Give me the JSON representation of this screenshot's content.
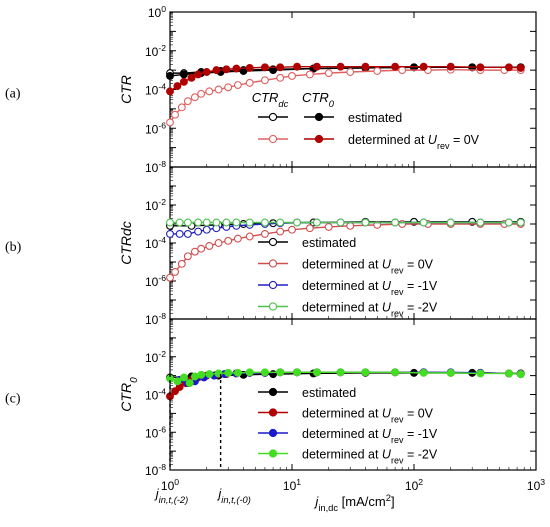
{
  "figure": {
    "x_axis": {
      "label_main": "j",
      "label_sub": "in,dc",
      "label_unit_pre": " [mA/cm",
      "label_unit_sup": "2",
      "label_unit_post": "]",
      "scale": "log",
      "range": [
        1,
        1000
      ],
      "tick_base": "10",
      "tick_exponents": [
        "0",
        "1",
        "2",
        "3"
      ],
      "threshold_lines": [
        {
          "main": "j",
          "sub": "in,t,(-2)",
          "x": 1.0
        },
        {
          "main": "j",
          "sub": "in,t,(-0)",
          "x": 2.6
        }
      ]
    },
    "y_tick_base": "10",
    "y_tick_exponents": [
      "0",
      "-2",
      "-4",
      "-6",
      "-8"
    ]
  },
  "chart_data": [
    {
      "panel_label": "(a)",
      "type": "scatter",
      "y_label_main": "CTR",
      "y_label_sub": "",
      "scale": "log",
      "ylim": [
        1e-08,
        1
      ],
      "legend": {
        "placement": "center",
        "col_headers": [
          {
            "main": "CTR",
            "sub": "dc"
          },
          {
            "main": "CTR",
            "sub": "0"
          }
        ],
        "rows": [
          {
            "pre": "estimated",
            "sub": "",
            "post": "",
            "colors": [
              "#000000",
              "#000000"
            ]
          },
          {
            "pre": "determined at U",
            "sub": "rev",
            "post": " = 0V",
            "colors": [
              "#e06060",
              "#b00000"
            ]
          }
        ]
      },
      "series": [
        {
          "name": "CTRdc estimated",
          "color": "#000000",
          "fill": "none",
          "x": [
            1.0,
            1.3,
            1.8,
            2.6,
            4,
            7,
            15,
            40,
            100,
            300,
            750
          ],
          "y": [
            0.0007,
            0.0007,
            0.0008,
            0.0009,
            0.001,
            0.0011,
            0.0012,
            0.0013,
            0.0014,
            0.0014,
            0.0014
          ]
        },
        {
          "name": "CTR0 estimated",
          "color": "#000000",
          "fill": "#000000",
          "x": [
            1.0,
            1.3,
            1.8,
            2.6,
            4,
            7,
            15,
            40,
            100,
            300,
            750
          ],
          "y": [
            0.0005,
            0.0006,
            0.0007,
            0.0008,
            0.0009,
            0.001,
            0.0012,
            0.0013,
            0.0014,
            0.0014,
            0.0014
          ]
        },
        {
          "name": "CTRdc determined at Urev = 0V",
          "color": "#e06060",
          "fill": "none",
          "x": [
            1.0,
            1.1,
            1.25,
            1.4,
            1.6,
            1.8,
            2.1,
            2.5,
            3.0,
            3.6,
            4.5,
            6,
            8,
            10,
            14,
            20,
            30,
            50,
            80,
            130,
            200,
            350,
            550,
            750
          ],
          "y": [
            2e-06,
            5e-06,
            1.2e-05,
            2.5e-05,
            4e-05,
            6e-05,
            8e-05,
            0.0001,
            0.00013,
            0.00017,
            0.00022,
            0.0003,
            0.0004,
            0.0005,
            0.0006,
            0.0007,
            0.0008,
            0.0009,
            0.001,
            0.001,
            0.00105,
            0.001,
            0.001,
            0.001
          ]
        },
        {
          "name": "CTR0 determined at Urev = 0V",
          "color": "#b00000",
          "fill": "#b00000",
          "x": [
            1.0,
            1.15,
            1.3,
            1.5,
            1.7,
            2.0,
            2.4,
            2.9,
            3.5,
            4.5,
            6,
            8,
            11,
            16,
            25,
            40,
            70,
            120,
            200,
            350,
            600,
            750
          ],
          "y": [
            8e-05,
            0.00015,
            0.00025,
            0.0004,
            0.0006,
            0.0008,
            0.001,
            0.0011,
            0.0012,
            0.0013,
            0.0014,
            0.0014,
            0.0015,
            0.0015,
            0.0015,
            0.0015,
            0.0015,
            0.0015,
            0.0015,
            0.0014,
            0.0014,
            0.0013
          ]
        }
      ]
    },
    {
      "panel_label": "(b)",
      "type": "scatter",
      "y_label_main": "CTRdc",
      "y_label_sub": "",
      "scale": "log",
      "ylim": [
        1e-08,
        1
      ],
      "legend": {
        "placement": "center",
        "col_headers": [],
        "rows": [
          {
            "pre": "estimated",
            "sub": "",
            "post": "",
            "colors": [
              "#000000"
            ]
          },
          {
            "pre": "determined at U",
            "sub": "rev",
            "post": " =  0V",
            "colors": [
              "#d05050"
            ]
          },
          {
            "pre": "determined at U",
            "sub": "rev",
            "post": " = -1V",
            "colors": [
              "#2020c0"
            ]
          },
          {
            "pre": "determined at U",
            "sub": "rev",
            "post": " = -2V",
            "colors": [
              "#50c050"
            ]
          }
        ]
      },
      "series": [
        {
          "name": "estimated",
          "color": "#000000",
          "fill": "none",
          "x": [
            1.0,
            1.5,
            2.5,
            4,
            7,
            15,
            40,
            100,
            300,
            750
          ],
          "y": [
            0.0008,
            0.0008,
            0.0009,
            0.001,
            0.0011,
            0.0012,
            0.0013,
            0.0013,
            0.0013,
            0.0013
          ]
        },
        {
          "name": "determined at Urev = 0V",
          "color": "#d05050",
          "fill": "none",
          "x": [
            1.0,
            1.1,
            1.25,
            1.4,
            1.6,
            1.8,
            2.1,
            2.5,
            3.0,
            3.6,
            4.5,
            6,
            8,
            10,
            14,
            20,
            30,
            50,
            80,
            130,
            200,
            350,
            550,
            750
          ],
          "y": [
            1.5e-06,
            3e-06,
            8e-06,
            2e-05,
            3.5e-05,
            5e-05,
            7e-05,
            0.0001,
            0.00013,
            0.00017,
            0.00022,
            0.0003,
            0.0004,
            0.0005,
            0.0006,
            0.0007,
            0.0008,
            0.0009,
            0.001,
            0.001,
            0.001,
            0.001,
            0.001,
            0.001
          ]
        },
        {
          "name": "determined at Urev = -1V",
          "color": "#2020c0",
          "fill": "none",
          "x": [
            1.0,
            1.2,
            1.4,
            1.7,
            2.0,
            2.4,
            2.9,
            3.5,
            4.5,
            6,
            8,
            11,
            16,
            25,
            40,
            70,
            120,
            200,
            350,
            600,
            750
          ],
          "y": [
            0.0003,
            0.0003,
            0.0003,
            0.0004,
            0.0005,
            0.0006,
            0.0007,
            0.0008,
            0.0009,
            0.001,
            0.0011,
            0.0012,
            0.0012,
            0.0012,
            0.0012,
            0.0012,
            0.0012,
            0.0012,
            0.0012,
            0.0012,
            0.0012
          ]
        },
        {
          "name": "determined at Urev = -2V",
          "color": "#50c050",
          "fill": "none",
          "x": [
            1.0,
            1.2,
            1.4,
            1.7,
            2.0,
            2.4,
            2.9,
            3.5,
            4.5,
            6,
            8,
            11,
            16,
            25,
            40,
            70,
            120,
            200,
            350,
            600,
            750
          ],
          "y": [
            0.0012,
            0.0012,
            0.0012,
            0.0012,
            0.0012,
            0.0012,
            0.0012,
            0.0012,
            0.0012,
            0.0012,
            0.0012,
            0.0012,
            0.0012,
            0.0012,
            0.0012,
            0.0012,
            0.0012,
            0.0012,
            0.0012,
            0.0012,
            0.0012
          ]
        }
      ]
    },
    {
      "panel_label": "(c)",
      "type": "scatter",
      "y_label_main": "CTR",
      "y_label_sub": "0",
      "scale": "log",
      "ylim": [
        1e-08,
        1
      ],
      "legend": {
        "placement": "center",
        "col_headers": [],
        "rows": [
          {
            "pre": "estimated",
            "sub": "",
            "post": "",
            "colors": [
              "#000000"
            ]
          },
          {
            "pre": "determined at U",
            "sub": "rev",
            "post": " =  0V",
            "colors": [
              "#b00000"
            ]
          },
          {
            "pre": "determined at U",
            "sub": "rev",
            "post": " = -1V",
            "colors": [
              "#1a1acc"
            ]
          },
          {
            "pre": "determined at U",
            "sub": "rev",
            "post": " = -2V",
            "colors": [
              "#44dd22"
            ]
          }
        ]
      },
      "series": [
        {
          "name": "estimated",
          "color": "#000000",
          "fill": "#000000",
          "x": [
            1.0,
            1.5,
            2.5,
            4,
            7,
            15,
            40,
            100,
            300,
            750
          ],
          "y": [
            0.0008,
            0.0009,
            0.001,
            0.0011,
            0.0012,
            0.0013,
            0.0014,
            0.0014,
            0.0014,
            0.0013
          ]
        },
        {
          "name": "determined at Urev = 0V",
          "color": "#b00000",
          "fill": "#b00000",
          "x": [
            1.0,
            1.1,
            1.2,
            1.35,
            1.5,
            1.7,
            2.0,
            2.4,
            2.9,
            3.5,
            4.5,
            6,
            8,
            11,
            16,
            25,
            40,
            70,
            120,
            200,
            350,
            600,
            750
          ],
          "y": [
            8e-05,
            0.00015,
            0.00025,
            0.0004,
            0.0006,
            0.0008,
            0.001,
            0.0011,
            0.0012,
            0.0013,
            0.0014,
            0.0014,
            0.0015,
            0.0015,
            0.0015,
            0.0015,
            0.0015,
            0.0015,
            0.0015,
            0.0014,
            0.0014,
            0.0013,
            0.0012
          ]
        },
        {
          "name": "determined at Urev = -1V",
          "color": "#1a1acc",
          "fill": "#1a1acc",
          "x": [
            1.2,
            1.4,
            1.6,
            1.9,
            2.3,
            2.8,
            3.5,
            4.5,
            6,
            8,
            11,
            16,
            25,
            40,
            70,
            120,
            200,
            350,
            600,
            750
          ],
          "y": [
            0.0006,
            0.0004,
            0.0005,
            0.0008,
            0.001,
            0.0012,
            0.0013,
            0.0014,
            0.0014,
            0.0015,
            0.0015,
            0.0015,
            0.0015,
            0.0015,
            0.0015,
            0.0015,
            0.0015,
            0.0014,
            0.0013,
            0.0012
          ]
        },
        {
          "name": "determined at Urev = -2V",
          "color": "#44dd22",
          "fill": "#44dd22",
          "x": [
            1.0,
            1.15,
            1.3,
            1.45,
            1.6,
            1.8,
            2.1,
            2.5,
            3.0,
            3.6,
            4.5,
            6,
            8,
            11,
            16,
            25,
            40,
            70,
            120,
            200,
            350,
            600,
            750
          ],
          "y": [
            0.0007,
            0.0005,
            0.0008,
            0.0004,
            0.0009,
            0.0011,
            0.0012,
            0.0013,
            0.0014,
            0.0014,
            0.0015,
            0.0015,
            0.0015,
            0.0015,
            0.0015,
            0.0015,
            0.0015,
            0.0015,
            0.0014,
            0.0014,
            0.0013,
            0.0013,
            0.0012
          ]
        }
      ]
    }
  ]
}
